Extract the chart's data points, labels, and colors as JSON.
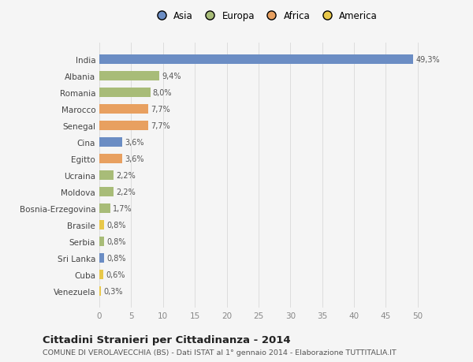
{
  "countries": [
    "Venezuela",
    "Cuba",
    "Sri Lanka",
    "Serbia",
    "Brasile",
    "Bosnia-Erzegovina",
    "Moldova",
    "Ucraina",
    "Egitto",
    "Cina",
    "Senegal",
    "Marocco",
    "Romania",
    "Albania",
    "India"
  ],
  "values": [
    0.3,
    0.6,
    0.8,
    0.8,
    0.8,
    1.7,
    2.2,
    2.2,
    3.6,
    3.6,
    7.7,
    7.7,
    8.0,
    9.4,
    49.3
  ],
  "labels": [
    "0,3%",
    "0,6%",
    "0,8%",
    "0,8%",
    "0,8%",
    "1,7%",
    "2,2%",
    "2,2%",
    "3,6%",
    "3,6%",
    "7,7%",
    "7,7%",
    "8,0%",
    "9,4%",
    "49,3%"
  ],
  "colors": [
    "#e8c84a",
    "#e8c84a",
    "#6b8dc4",
    "#a8bc78",
    "#e8c84a",
    "#a8bc78",
    "#a8bc78",
    "#a8bc78",
    "#e8a060",
    "#6b8dc4",
    "#e8a060",
    "#e8a060",
    "#a8bc78",
    "#a8bc78",
    "#6b8dc4"
  ],
  "legend_labels": [
    "Asia",
    "Europa",
    "Africa",
    "America"
  ],
  "legend_colors": [
    "#6b8dc4",
    "#a8bc78",
    "#e8a060",
    "#e8c84a"
  ],
  "title": "Cittadini Stranieri per Cittadinanza - 2014",
  "subtitle": "COMUNE DI VEROLAVECCHIA (BS) - Dati ISTAT al 1° gennaio 2014 - Elaborazione TUTTITALIA.IT",
  "xlim": [
    0,
    52
  ],
  "xticks": [
    0,
    5,
    10,
    15,
    20,
    25,
    30,
    35,
    40,
    45,
    50
  ],
  "bg_color": "#f5f5f5",
  "bar_height": 0.55
}
